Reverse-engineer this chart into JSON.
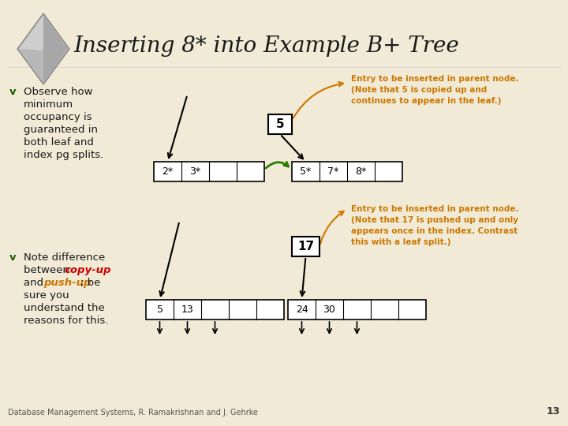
{
  "bg_color": "#f0ead6",
  "title": "Inserting 8* into Example B+ Tree",
  "title_color": "#1a1a1a",
  "title_fontsize": 20,
  "orange_color": "#cc7700",
  "green_color": "#2d7a00",
  "red_color": "#cc0000",
  "dark_green": "#1a5c00",
  "footer_text": "Database Management Systems, R. Ramakrishnan and J. Gehrke",
  "footer_page": "13",
  "annotation1": "Entry to be inserted in parent node.\n(Note that 5 is copied up and\ncontinues to appear in the leaf.)",
  "annotation2": "Entry to be inserted in parent node.\n(Note that 17 is pushed up and only\nappears once in the index. Contrast\nthis with a leaf split.)"
}
